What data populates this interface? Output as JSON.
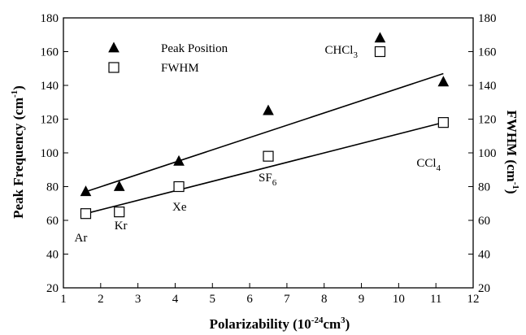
{
  "chart_data": {
    "type": "scatter",
    "title": "",
    "xlabel": "Polarizability (10",
    "xlabel_sup": "-24",
    "xlabel_mid": "cm",
    "xlabel_sup2": "3",
    "xlabel_end": ")",
    "ylabel": "Peak Frequency (cm",
    "ylabel_sup": "-1",
    "ylabel_end": ")",
    "y2label": "FWHM (cm",
    "y2label_sup": "-1",
    "y2label_end": ")",
    "xlim": [
      1,
      12
    ],
    "ylim": [
      20,
      180
    ],
    "y2lim": [
      20,
      180
    ],
    "x_ticks": [
      1,
      2,
      3,
      4,
      5,
      6,
      7,
      8,
      9,
      10,
      11,
      12
    ],
    "y_ticks": [
      20,
      40,
      60,
      80,
      100,
      120,
      140,
      160,
      180
    ],
    "y2_ticks": [
      20,
      40,
      60,
      80,
      100,
      120,
      140,
      160,
      180
    ],
    "grid": false,
    "legend_position": "top-center",
    "series": [
      {
        "name": "Peak Position",
        "marker": "filled-triangle",
        "color": "#000000",
        "x": [
          1.6,
          2.5,
          4.1,
          6.5,
          9.5,
          11.2
        ],
        "y": [
          77,
          80,
          95,
          125,
          168,
          142
        ],
        "fit_line": {
          "x": [
            1.6,
            11.2
          ],
          "y": [
            77,
            147
          ]
        }
      },
      {
        "name": "FWHM",
        "marker": "open-square",
        "color": "#000000",
        "x": [
          1.6,
          2.5,
          4.1,
          6.5,
          9.5,
          11.2
        ],
        "y": [
          64,
          65,
          80,
          98,
          160,
          118
        ],
        "fit_line": {
          "x": [
            1.6,
            11.2
          ],
          "y": [
            64,
            118
          ]
        }
      }
    ],
    "annotations": [
      {
        "text": "Ar",
        "sub": "",
        "x": 1.6
      },
      {
        "text": "Kr",
        "sub": "",
        "x": 2.5
      },
      {
        "text": "Xe",
        "sub": "",
        "x": 4.1
      },
      {
        "text": "SF",
        "sub": "6",
        "x": 6.5
      },
      {
        "text": "CHCl",
        "sub": "3",
        "x": 9.5
      },
      {
        "text": "CCl",
        "sub": "4",
        "x": 11.2
      }
    ]
  }
}
